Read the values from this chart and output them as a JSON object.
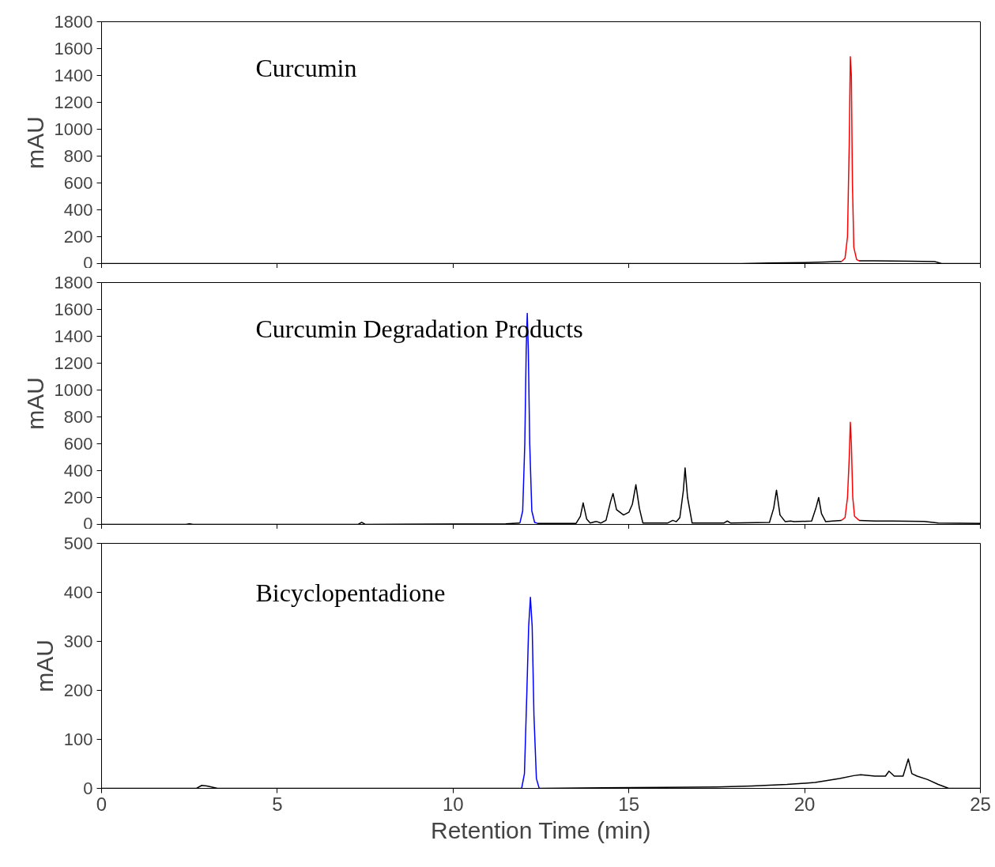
{
  "chart_data": [
    {
      "type": "line",
      "ylabel": "mAU",
      "annotations": [
        "Curcumin"
      ],
      "xlim": [
        0,
        25
      ],
      "xticks": [
        0,
        5,
        10,
        15,
        20,
        25
      ],
      "ylim": [
        0,
        1800
      ],
      "yticks": [
        0,
        200,
        400,
        600,
        800,
        1000,
        1200,
        1400,
        1600,
        1800
      ],
      "tick_labels": "y",
      "grid": false,
      "series": [
        {
          "color": "#000000",
          "x": [
            0,
            18.2,
            19,
            20,
            20.6,
            20.9,
            21.05
          ],
          "values": [
            0,
            0,
            5,
            8,
            12,
            15,
            15
          ]
        },
        {
          "color": "#ff0000",
          "x": [
            21.05,
            21.15,
            21.22,
            21.27,
            21.3,
            21.33,
            21.36,
            21.4,
            21.48,
            21.55
          ],
          "values": [
            15,
            40,
            200,
            900,
            1540,
            1400,
            600,
            120,
            30,
            20
          ]
        },
        {
          "color": "#000000",
          "x": [
            21.55,
            22,
            23,
            23.7,
            23.9,
            25
          ],
          "values": [
            20,
            20,
            18,
            15,
            0,
            0
          ]
        }
      ]
    },
    {
      "type": "line",
      "ylabel": "mAU",
      "annotations": [
        "Curcumin Degradation Products"
      ],
      "xlim": [
        0,
        25
      ],
      "xticks": [
        0,
        5,
        10,
        15,
        20,
        25
      ],
      "ylim": [
        0,
        1800
      ],
      "yticks": [
        0,
        200,
        400,
        600,
        800,
        1000,
        1200,
        1400,
        1600,
        1800
      ],
      "tick_labels": "y",
      "grid": false,
      "series": [
        {
          "color": "#000000",
          "x": [
            0,
            2.4,
            2.5,
            2.6,
            7.3,
            7.4,
            7.5,
            11.5,
            11.9
          ],
          "values": [
            0,
            0,
            5,
            0,
            0,
            15,
            0,
            5,
            10
          ]
        },
        {
          "color": "#0000ff",
          "x": [
            11.9,
            11.98,
            12.04,
            12.08,
            12.11,
            12.14,
            12.18,
            12.24,
            12.32,
            12.4
          ],
          "values": [
            10,
            100,
            600,
            1300,
            1570,
            1300,
            600,
            100,
            15,
            8
          ]
        },
        {
          "color": "#000000",
          "x": [
            12.4,
            13.5,
            13.62,
            13.7,
            13.8,
            13.9,
            14.05,
            14.1,
            14.2,
            14.35,
            14.48,
            14.55,
            14.65,
            14.85,
            15.0,
            15.1,
            15.2,
            15.3,
            15.4,
            16.1,
            16.25,
            16.35,
            16.45,
            16.55,
            16.6,
            16.67,
            16.8,
            17.7,
            17.8,
            17.9,
            19.0,
            19.12,
            19.2,
            19.3,
            19.45,
            19.6,
            19.7,
            20.2,
            20.32,
            20.4,
            20.48,
            20.6,
            20.8,
            21.05
          ],
          "values": [
            8,
            8,
            60,
            160,
            40,
            10,
            20,
            20,
            10,
            30,
            170,
            230,
            110,
            70,
            90,
            150,
            295,
            120,
            10,
            10,
            30,
            20,
            50,
            250,
            420,
            200,
            10,
            10,
            25,
            10,
            15,
            120,
            255,
            70,
            20,
            25,
            20,
            25,
            120,
            200,
            80,
            20,
            25,
            30
          ]
        },
        {
          "color": "#ff0000",
          "x": [
            21.05,
            21.15,
            21.22,
            21.27,
            21.3,
            21.33,
            21.37,
            21.42,
            21.55
          ],
          "values": [
            30,
            50,
            200,
            500,
            760,
            600,
            200,
            60,
            30
          ]
        },
        {
          "color": "#000000",
          "x": [
            21.55,
            22,
            22.5,
            23.4,
            23.8,
            25
          ],
          "values": [
            30,
            25,
            25,
            22,
            10,
            8
          ]
        }
      ]
    },
    {
      "type": "line",
      "ylabel": "mAU",
      "xlabel": "Retention Time (min)",
      "annotations": [
        "Bicyclopentadione"
      ],
      "xlim": [
        0,
        25
      ],
      "xticks": [
        0,
        5,
        10,
        15,
        20,
        25
      ],
      "ylim": [
        0,
        500
      ],
      "yticks": [
        0,
        100,
        200,
        300,
        400,
        500
      ],
      "grid": false,
      "series": [
        {
          "color": "#000000",
          "x": [
            0,
            1,
            2.6,
            2.7,
            2.85,
            3.0,
            3.3,
            11.5,
            11.95
          ],
          "values": [
            0,
            0,
            0,
            0,
            6,
            5,
            0,
            0,
            0
          ]
        },
        {
          "color": "#0000ff",
          "x": [
            11.95,
            12.03,
            12.1,
            12.15,
            12.2,
            12.25,
            12.3,
            12.37,
            12.45
          ],
          "values": [
            0,
            30,
            200,
            330,
            390,
            330,
            150,
            20,
            0
          ]
        },
        {
          "color": "#000000",
          "x": [
            12.45,
            16,
            17.5,
            18.5,
            19.5,
            20.3,
            21,
            21.4,
            21.6,
            22.0,
            22.3,
            22.4,
            22.55,
            22.8,
            22.95,
            23.05,
            23.2,
            23.5,
            23.8,
            24.1,
            25
          ],
          "values": [
            0,
            2,
            3,
            5,
            8,
            12,
            20,
            26,
            28,
            25,
            25,
            35,
            25,
            25,
            60,
            30,
            25,
            18,
            8,
            0,
            0
          ]
        }
      ]
    }
  ]
}
